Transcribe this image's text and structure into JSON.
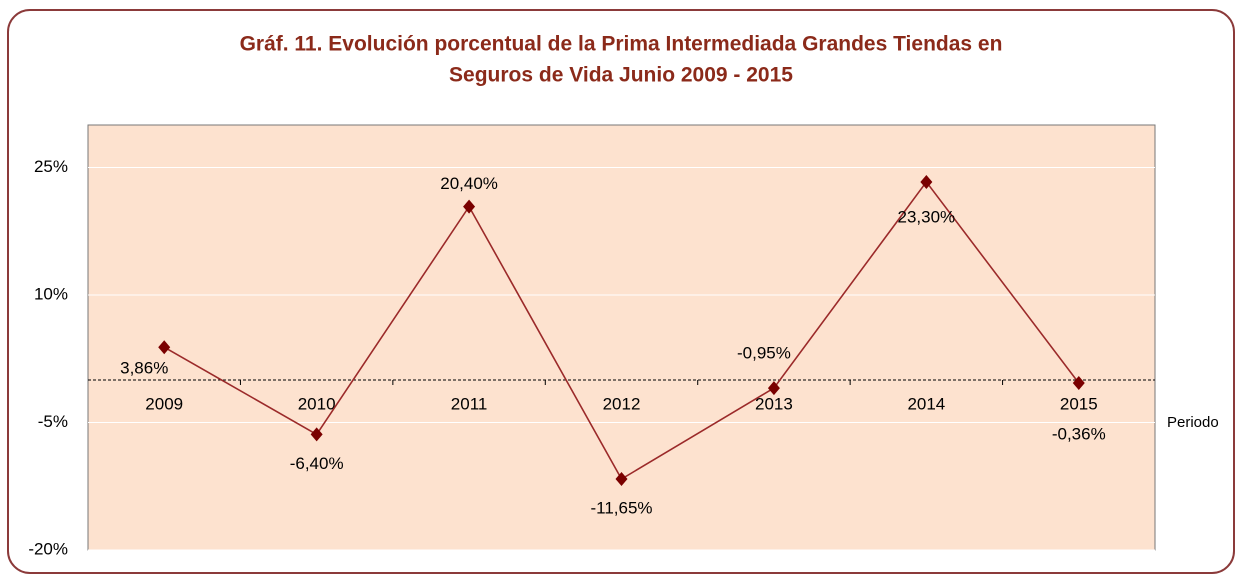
{
  "chart_data": {
    "type": "line",
    "title": [
      "Gráf. 11. Evolución porcentual de la Prima Intermediada Grandes Tiendas en",
      "Seguros de Vida Junio 2009  - 2015"
    ],
    "x_label": "Periodo",
    "categories": [
      "2009",
      "2010",
      "2011",
      "2012",
      "2013",
      "2014",
      "2015"
    ],
    "series": [
      {
        "name": "Prima Intermediada",
        "color": "#9b2a2a",
        "values": [
          3.86,
          -6.4,
          20.4,
          -11.65,
          -0.95,
          23.3,
          -0.36
        ],
        "value_labels": [
          "3,86%",
          "-6,40%",
          "20,40%",
          "-11,65%",
          "-0,95%",
          "23,30%",
          "-0,36%"
        ]
      }
    ],
    "ylim": [
      -20,
      30
    ],
    "yticks": [
      {
        "value": -20,
        "label": "-20%"
      },
      {
        "value": -5,
        "label": "-5%"
      },
      {
        "value": 10,
        "label": "10%"
      },
      {
        "value": 25,
        "label": "25%"
      }
    ],
    "grid": true
  }
}
